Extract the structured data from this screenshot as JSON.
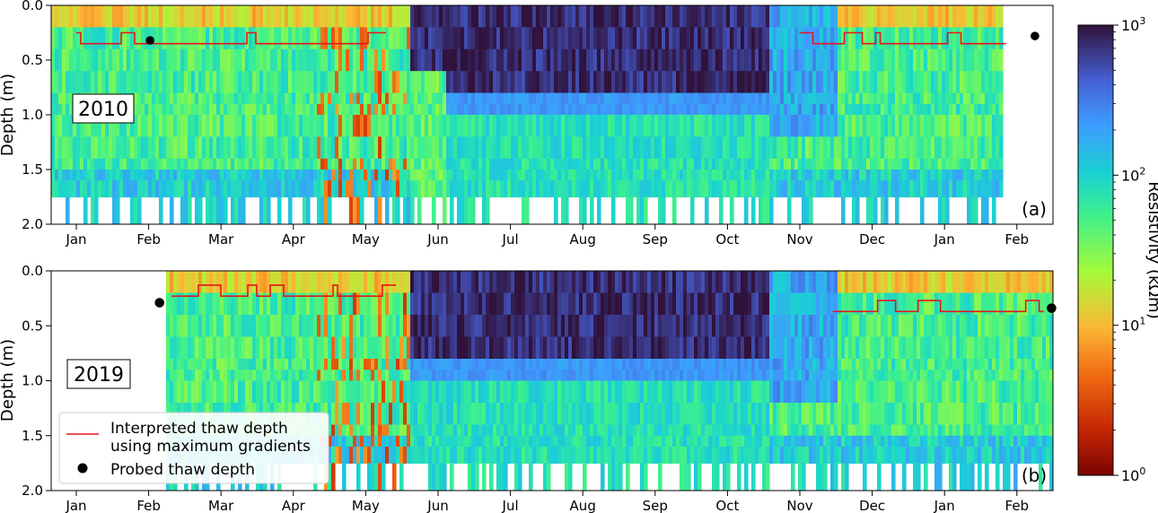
{
  "chart_data": [
    {
      "type": "heatmap",
      "panel": "(a)",
      "year_label": "2010",
      "ylabel": "Depth (m)",
      "ylim": [
        2.0,
        0.0
      ],
      "yticks": [
        "0.0",
        "0.5",
        "1.0",
        "1.5",
        "2.0"
      ],
      "xticks": [
        "Jan",
        "Feb",
        "Mar",
        "Apr",
        "May",
        "Jun",
        "Jul",
        "Aug",
        "Sep",
        "Oct",
        "Nov",
        "Dec",
        "Jan",
        "Feb"
      ],
      "probed_thaw_depth": [
        {
          "date": "2010-02-01",
          "depth": 0.32
        },
        {
          "date": "2011-02-08",
          "depth": 0.28
        }
      ],
      "interpreted_thaw_depth": [
        {
          "from": "2010-01-01",
          "to": "2010-05-10",
          "depth": 0.35
        },
        {
          "from": "2010-11-01",
          "to": "2011-01-25",
          "depth": 0.35
        }
      ]
    },
    {
      "type": "heatmap",
      "panel": "(b)",
      "year_label": "2019",
      "ylabel": "Depth (m)",
      "ylim": [
        2.0,
        0.0
      ],
      "yticks": [
        "0.0",
        "0.5",
        "1.0",
        "1.5",
        "2.0"
      ],
      "xticks": [
        "Jan",
        "Feb",
        "Mar",
        "Apr",
        "May",
        "Jun",
        "Jul",
        "Aug",
        "Sep",
        "Oct",
        "Nov",
        "Dec",
        "Jan",
        "Feb"
      ],
      "probed_thaw_depth": [
        {
          "date": "2019-02-05",
          "depth": 0.29
        },
        {
          "date": "2020-02-15",
          "depth": 0.34
        }
      ],
      "interpreted_thaw_depth": [
        {
          "from": "2019-02-10",
          "to": "2019-05-15",
          "depth": 0.23
        },
        {
          "from": "2019-11-15",
          "to": "2020-02-10",
          "depth": 0.37
        }
      ]
    }
  ],
  "colorbar": {
    "label": "Resistivity (kΩm)",
    "scale": "log",
    "range": [
      1,
      1000
    ],
    "tick_labels": [
      {
        "base": "10",
        "exp": "3"
      },
      {
        "base": "10",
        "exp": "2"
      },
      {
        "base": "10",
        "exp": "1"
      },
      {
        "base": "10",
        "exp": "0"
      }
    ]
  },
  "legend": {
    "placement": "lower-left",
    "line_label_1": "Interpreted thaw depth",
    "line_label_2": "using maximum gradients",
    "dot_label": "Probed thaw depth"
  },
  "colors": {
    "thaw_line": "#e8141c",
    "probe_dot": "#000000"
  }
}
